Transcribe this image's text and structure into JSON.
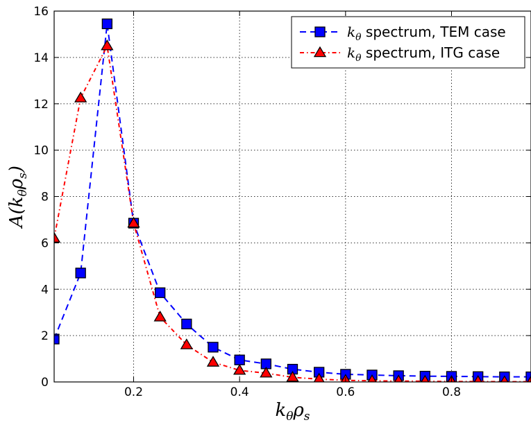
{
  "chart_data": {
    "type": "line",
    "xlabel_base": "k",
    "xlabel_sub1": "θ",
    "xlabel_mid": "ρ",
    "xlabel_sub2": "s",
    "ylabel_prefix": "A(k",
    "ylabel_sub1": "θ",
    "ylabel_mid": "ρ",
    "ylabel_sub2": "s",
    "ylabel_suffix": ")",
    "xlim": [
      0.05,
      0.95
    ],
    "ylim": [
      0,
      16
    ],
    "xticks": [
      0.2,
      0.4,
      0.6,
      0.8
    ],
    "xtick_labels": [
      "0.2",
      "0.4",
      "0.6",
      "0.8"
    ],
    "yticks": [
      0,
      2,
      4,
      6,
      8,
      10,
      12,
      14,
      16
    ],
    "ytick_labels": [
      "0",
      "2",
      "4",
      "6",
      "8",
      "10",
      "12",
      "14",
      "16"
    ],
    "grid": true,
    "legend_position": "top-right",
    "series": [
      {
        "name_math": "k",
        "name_math_sub": "θ",
        "name": " spectrum, TEM case",
        "color": "#0000ff",
        "linestyle": "dashed",
        "marker": "square",
        "x": [
          0.05,
          0.1,
          0.15,
          0.2,
          0.25,
          0.3,
          0.35,
          0.4,
          0.45,
          0.5,
          0.55,
          0.6,
          0.65,
          0.7,
          0.75,
          0.8,
          0.85,
          0.9,
          0.95
        ],
        "y": [
          1.85,
          4.7,
          15.45,
          6.85,
          3.85,
          2.5,
          1.5,
          0.95,
          0.78,
          0.55,
          0.42,
          0.33,
          0.3,
          0.27,
          0.25,
          0.24,
          0.23,
          0.22,
          0.22
        ]
      },
      {
        "name_math": "k",
        "name_math_sub": "θ",
        "name": " spectrum, ITG case",
        "color": "#ff0000",
        "linestyle": "dashdot",
        "marker": "triangle",
        "x": [
          0.05,
          0.1,
          0.15,
          0.2,
          0.25,
          0.3,
          0.35,
          0.4,
          0.45,
          0.5,
          0.55,
          0.6,
          0.65,
          0.7,
          0.75,
          0.8,
          0.85,
          0.9,
          0.95
        ],
        "y": [
          6.2,
          12.25,
          14.5,
          6.85,
          2.8,
          1.6,
          0.85,
          0.5,
          0.38,
          0.2,
          0.12,
          0.07,
          0.05,
          0.04,
          0.03,
          0.02,
          0.02,
          0.01,
          0.01
        ]
      }
    ]
  }
}
